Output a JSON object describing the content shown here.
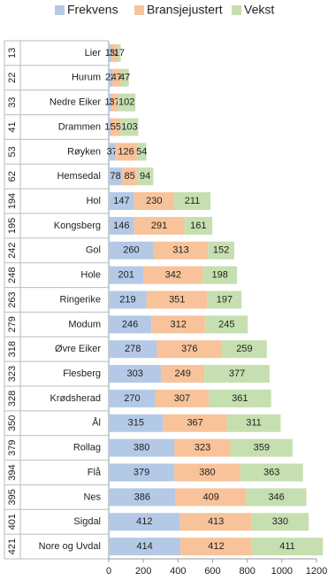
{
  "chart_data": {
    "type": "stacked_barh",
    "categories": [
      "Lier",
      "Hurum",
      "Nedre Eiker",
      "Drammen",
      "Røyken",
      "Hemsedal",
      "Hol",
      "Kongsberg",
      "Gol",
      "Hole",
      "Ringerike",
      "Modum",
      "Øvre Eiker",
      "Flesberg",
      "Krødsherad",
      "Ål",
      "Rollag",
      "Flå",
      "Nes",
      "Sigdal",
      "Nore og Uvdal"
    ],
    "row_labels": [
      "13",
      "22",
      "33",
      "41",
      "53",
      "62",
      "194",
      "195",
      "242",
      "248",
      "263",
      "279",
      "318",
      "323",
      "328",
      "350",
      "379",
      "394",
      "395",
      "401",
      "421"
    ],
    "series": [
      {
        "name": "Frekvens",
        "color": "#b4c9e6",
        "values": [
          19,
          22,
          15,
          13,
          37,
          78,
          147,
          146,
          260,
          201,
          219,
          246,
          278,
          303,
          270,
          315,
          380,
          379,
          386,
          412,
          414
        ]
      },
      {
        "name": "Bransjejustert",
        "color": "#f8c39a",
        "values": [
          33,
          47,
          37,
          55,
          126,
          85,
          230,
          291,
          313,
          342,
          351,
          312,
          376,
          249,
          307,
          367,
          323,
          380,
          409,
          413,
          412
        ]
      },
      {
        "name": "Vekst",
        "color": "#c6dfb0",
        "values": [
          17,
          47,
          102,
          103,
          54,
          94,
          211,
          161,
          152,
          198,
          197,
          245,
          259,
          377,
          361,
          311,
          359,
          363,
          346,
          330,
          411
        ]
      }
    ],
    "xlim": [
      0,
      1200
    ],
    "xticks": [
      0,
      200,
      400,
      600,
      800,
      1000,
      1200
    ],
    "legend": "top"
  }
}
